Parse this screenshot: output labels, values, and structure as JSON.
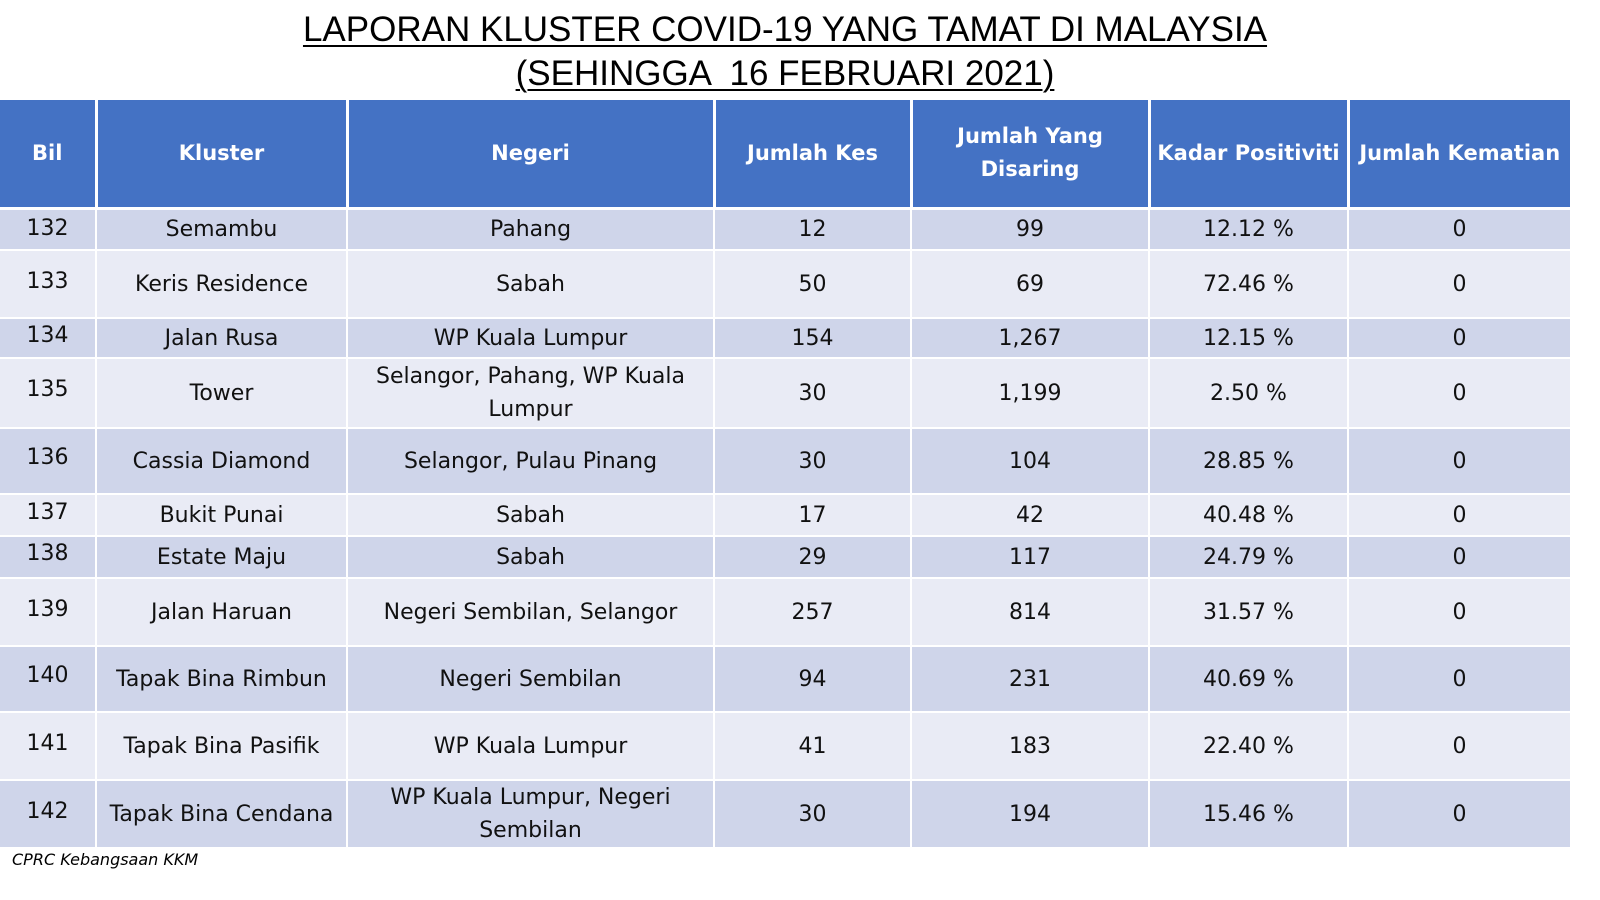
{
  "title": {
    "line1": "LAPORAN KLUSTER COVID-19 YANG TAMAT DI MALAYSIA",
    "line2": "(SEHINGGA  16 FEBRUARI 2021)"
  },
  "table": {
    "headers": [
      "Bil",
      "Kluster",
      "Negeri",
      "Jumlah Kes",
      "Jumlah Yang Disaring",
      "Kadar Positiviti",
      "Jumlah Kematian"
    ],
    "rows": [
      {
        "bil": "132",
        "kluster": "Semambu",
        "negeri": "Pahang",
        "kes": "12",
        "disaring": "99",
        "positiviti": "12.12 %",
        "kematian": "0"
      },
      {
        "bil": "133",
        "kluster": "Keris Residence",
        "negeri": "Sabah",
        "kes": "50",
        "disaring": "69",
        "positiviti": "72.46 %",
        "kematian": "0"
      },
      {
        "bil": "134",
        "kluster": "Jalan Rusa",
        "negeri": "WP Kuala Lumpur",
        "kes": "154",
        "disaring": "1,267",
        "positiviti": "12.15 %",
        "kematian": "0"
      },
      {
        "bil": "135",
        "kluster": "Tower",
        "negeri": "Selangor, Pahang, WP Kuala Lumpur",
        "kes": "30",
        "disaring": "1,199",
        "positiviti": "2.50 %",
        "kematian": "0"
      },
      {
        "bil": "136",
        "kluster": "Cassia Diamond",
        "negeri": "Selangor, Pulau Pinang",
        "kes": "30",
        "disaring": "104",
        "positiviti": "28.85 %",
        "kematian": "0"
      },
      {
        "bil": "137",
        "kluster": "Bukit Punai",
        "negeri": "Sabah",
        "kes": "17",
        "disaring": "42",
        "positiviti": "40.48 %",
        "kematian": "0"
      },
      {
        "bil": "138",
        "kluster": "Estate Maju",
        "negeri": "Sabah",
        "kes": "29",
        "disaring": "117",
        "positiviti": "24.79 %",
        "kematian": "0"
      },
      {
        "bil": "139",
        "kluster": "Jalan Haruan",
        "negeri": "Negeri Sembilan, Selangor",
        "kes": "257",
        "disaring": "814",
        "positiviti": "31.57 %",
        "kematian": "0"
      },
      {
        "bil": "140",
        "kluster": "Tapak Bina Rimbun",
        "negeri": "Negeri Sembilan",
        "kes": "94",
        "disaring": "231",
        "positiviti": "40.69 %",
        "kematian": "0"
      },
      {
        "bil": "141",
        "kluster": "Tapak Bina Pasifik",
        "negeri": "WP Kuala Lumpur",
        "kes": "41",
        "disaring": "183",
        "positiviti": "22.40 %",
        "kematian": "0"
      },
      {
        "bil": "142",
        "kluster": "Tapak Bina Cendana",
        "negeri": "WP Kuala Lumpur, Negeri Sembilan",
        "kes": "30",
        "disaring": "194",
        "positiviti": "15.46 %",
        "kematian": "0"
      }
    ]
  },
  "footer": {
    "source": "CPRC Kebangsaan KKM"
  },
  "colors": {
    "header_bg": "#4472c4",
    "row_odd": "#cfd5ea",
    "row_even": "#e9ebf5"
  }
}
